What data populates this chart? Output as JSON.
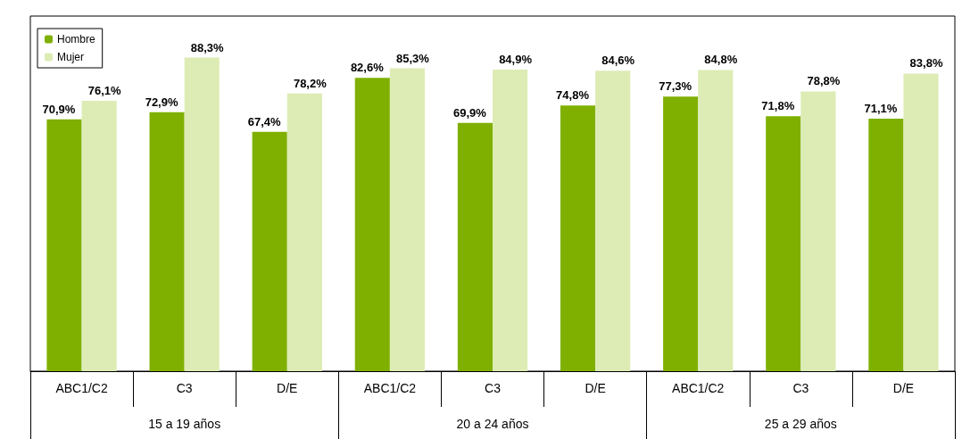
{
  "chart_data": {
    "type": "bar",
    "categories": [
      "ABC1/C2",
      "C3",
      "D/E",
      "ABC1/C2",
      "C3",
      "D/E",
      "ABC1/C2",
      "C3",
      "D/E"
    ],
    "annotations": [
      "15 a 19 años",
      "20 a 24 años",
      "25 a 29 años"
    ],
    "legend": "top left",
    "grid": false,
    "series": [
      {
        "name": "Hombre",
        "color": "#7fb000",
        "values": [
          70.9,
          72.9,
          67.4,
          82.6,
          69.9,
          74.8,
          77.3,
          71.8,
          71.1
        ],
        "value_labels": [
          "70,9%",
          "72,9%",
          "67,4%",
          "82,6%",
          "69,9%",
          "74,8%",
          "77,3%",
          "71,8%",
          "71,1%"
        ]
      },
      {
        "name": "Mujer",
        "color": "#dcecb4",
        "values": [
          76.1,
          88.3,
          78.2,
          85.3,
          84.9,
          84.6,
          84.8,
          78.8,
          83.8
        ],
        "value_labels": [
          "76,1%",
          "88,3%",
          "78,2%",
          "85,3%",
          "84,9%",
          "84,6%",
          "84,8%",
          "78,8%",
          "83,8%"
        ]
      }
    ]
  }
}
